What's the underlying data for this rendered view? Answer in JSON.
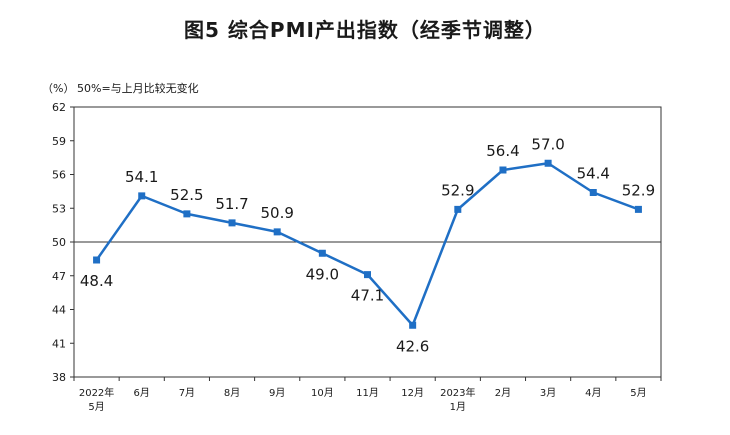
{
  "chart_data": {
    "type": "line",
    "title": "图5 综合PMI产出指数（经季节调整）",
    "unit_label": "（%）",
    "note": "50%=与上月比较无变化",
    "categories": [
      "2022年5月",
      "6月",
      "7月",
      "8月",
      "9月",
      "10月",
      "11月",
      "12月",
      "2023年1月",
      "2月",
      "3月",
      "4月",
      "5月"
    ],
    "category_lines": [
      [
        "2022年",
        "5月"
      ],
      [
        "6月"
      ],
      [
        "7月"
      ],
      [
        "8月"
      ],
      [
        "9月"
      ],
      [
        "10月"
      ],
      [
        "11月"
      ],
      [
        "12月"
      ],
      [
        "2023年",
        "1月"
      ],
      [
        "2月"
      ],
      [
        "3月"
      ],
      [
        "4月"
      ],
      [
        "5月"
      ]
    ],
    "values": [
      48.4,
      54.1,
      52.5,
      51.7,
      50.9,
      49.0,
      47.1,
      42.6,
      52.9,
      56.4,
      57.0,
      54.4,
      52.9
    ],
    "label_positions": [
      "below",
      "above",
      "above",
      "above",
      "above",
      "below",
      "below",
      "below",
      "above",
      "above",
      "above",
      "above",
      "above"
    ],
    "ylim": [
      38,
      62
    ],
    "yticks": [
      38,
      41,
      44,
      47,
      50,
      53,
      56,
      59,
      62
    ],
    "reference_line": 50,
    "grid": false,
    "colors": {
      "series": "#1f6fc5",
      "text": "#1a1a1a",
      "axis": "#333333"
    }
  }
}
